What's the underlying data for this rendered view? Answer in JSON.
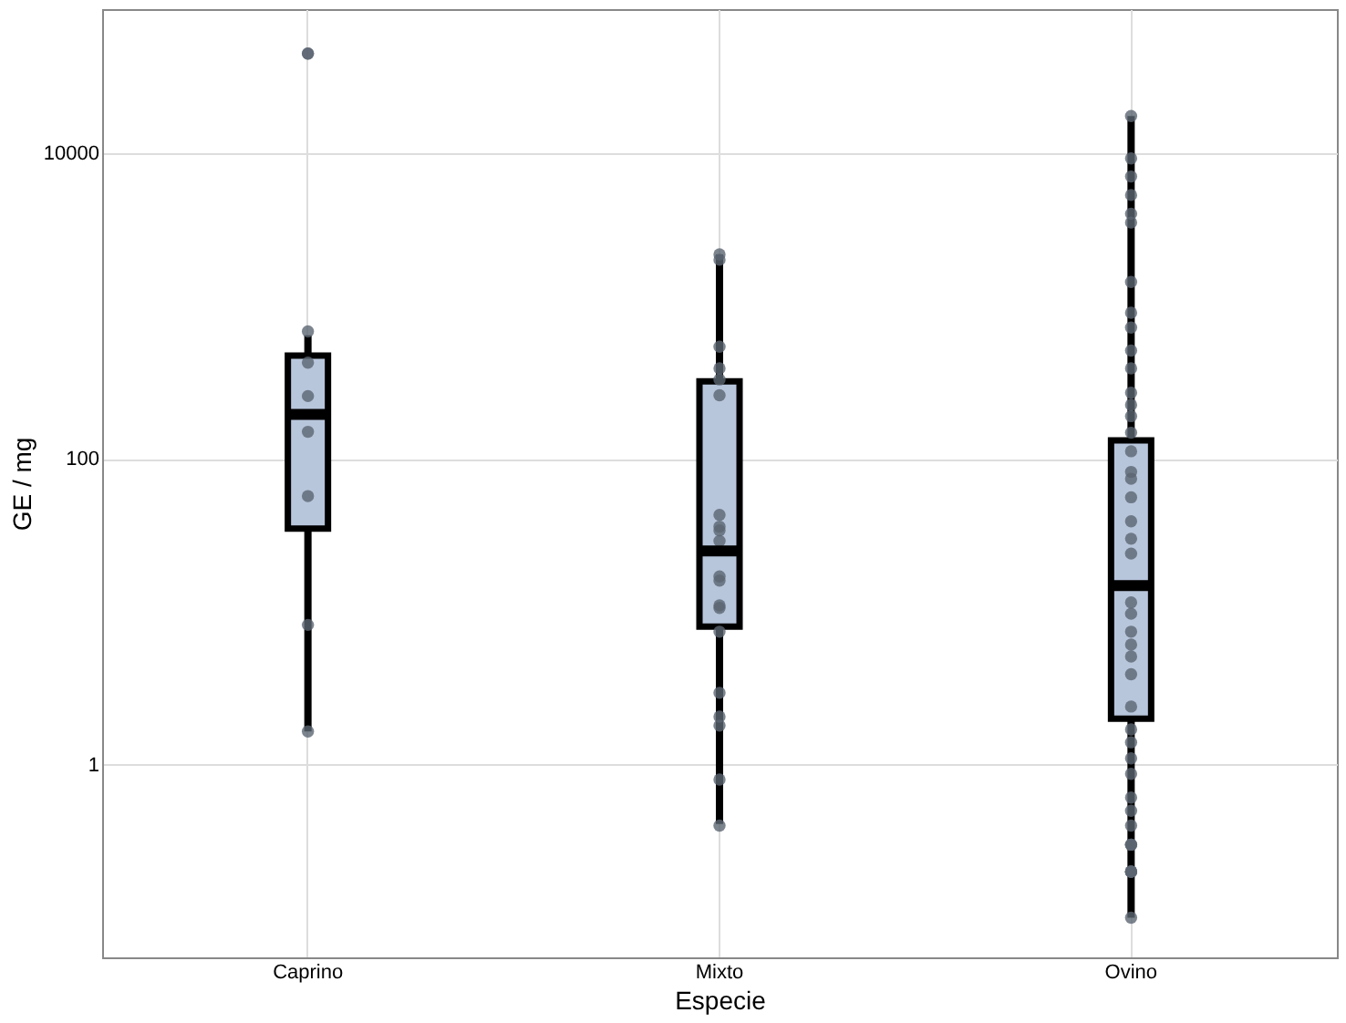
{
  "chart_data": {
    "type": "box",
    "xlabel": "Especie",
    "ylabel": "GE / mg",
    "categories": [
      "Caprino",
      "Mixto",
      "Ovino"
    ],
    "color": "#b8c6dc",
    "boxes": [
      {
        "low": 1.65,
        "q1": 35,
        "median": 195,
        "q3": 473,
        "high": 641
      },
      {
        "low": 0.41,
        "q1": 8,
        "median": 25,
        "q3": 321,
        "high": 2170
      },
      {
        "low": 0.1,
        "q1": 2,
        "median": 14.8,
        "q3": 132,
        "high": 17400
      }
    ],
    "series": [
      {
        "type": "scatter",
        "color": "#5b6572",
        "x": [
          "Caprino",
          "Caprino",
          "Caprino",
          "Caprino",
          "Caprino",
          "Caprino",
          "Caprino",
          "Caprino",
          "Caprino",
          "Mixto",
          "Mixto",
          "Mixto",
          "Mixto",
          "Mixto",
          "Mixto",
          "Mixto",
          "Mixto",
          "Mixto",
          "Mixto",
          "Mixto",
          "Mixto",
          "Mixto",
          "Mixto",
          "Mixto",
          "Mixto",
          "Mixto",
          "Mixto",
          "Mixto",
          "Mixto",
          "Ovino",
          "Ovino",
          "Ovino",
          "Ovino",
          "Ovino",
          "Ovino",
          "Ovino",
          "Ovino",
          "Ovino",
          "Ovino",
          "Ovino",
          "Ovino",
          "Ovino",
          "Ovino",
          "Ovino",
          "Ovino",
          "Ovino",
          "Ovino",
          "Ovino",
          "Ovino",
          "Ovino",
          "Ovino",
          "Ovino",
          "Ovino",
          "Ovino",
          "Ovino",
          "Ovino",
          "Ovino",
          "Ovino",
          "Ovino",
          "Ovino",
          "Ovino",
          "Ovino",
          "Ovino",
          "Ovino",
          "Ovino",
          "Ovino",
          "Ovino",
          "Ovino",
          "Ovino",
          "Ovino",
          "Ovino",
          "Ovino",
          "Ovino"
        ],
        "values": [
          44600,
          44600,
          680,
          425,
          257,
          150,
          57,
          8.2,
          1.65,
          2170,
          2000,
          540,
          390,
          330,
          260,
          43,
          36,
          34,
          29,
          17,
          16,
          11,
          10.6,
          7.4,
          2.95,
          2.06,
          1.8,
          0.8,
          0.4,
          17400,
          9200,
          7000,
          5300,
          4000,
          3500,
          1430,
          900,
          720,
          510,
          390,
          270,
          225,
          190,
          148,
          112,
          82,
          74,
          56,
          39,
          30,
          24,
          11.5,
          9.7,
          7.4,
          6.1,
          5.1,
          3.9,
          2.4,
          1.7,
          1.4,
          1.1,
          0.87,
          0.61,
          0.5,
          0.4,
          0.3,
          0.3,
          0.3,
          0.2,
          0.2,
          0.2,
          0.2,
          0.1
        ]
      }
    ],
    "ylim": [
      0.055,
      87000
    ],
    "yticks": [
      1,
      100,
      10000
    ],
    "log": true,
    "grid": true
  }
}
